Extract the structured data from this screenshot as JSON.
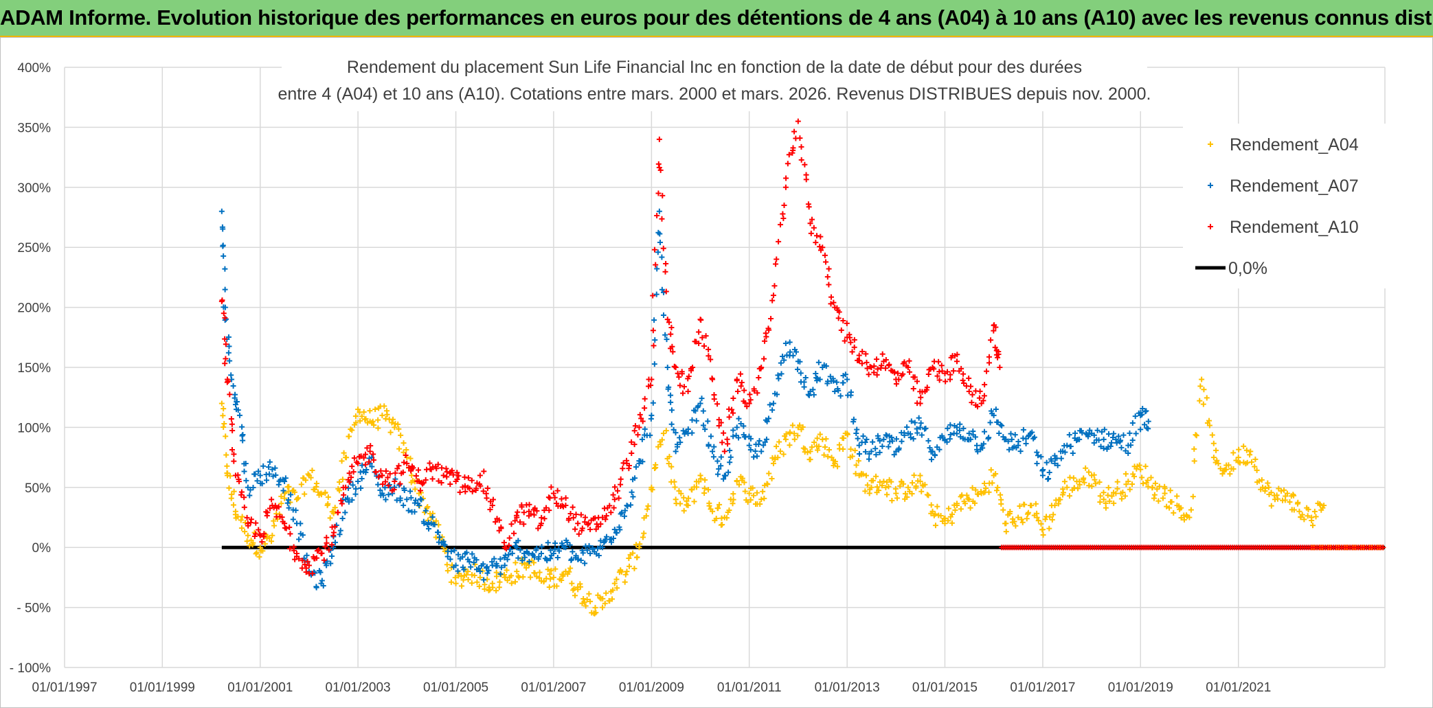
{
  "banner": {
    "title": "ADAM Informe. Evolution historique des performances en euros pour des détentions de 4 ans (A04) à 10 ans (A10) avec les revenus connus distribués"
  },
  "colors": {
    "banner_bg": "#83cf7c",
    "banner_border": "#f0b400",
    "grid": "#d9d9d9",
    "zero_line": "#000000",
    "a04": "#ffc000",
    "a07": "#0070c0",
    "a10": "#ff0000"
  },
  "chart_data": {
    "type": "scatter",
    "title_line1": "Rendement du placement Sun Life Financial Inc en fonction de la date de début pour des durées",
    "title_line2": "entre 4 (A04) et 10 ans (A10). Cotations entre mars. 2000 et mars. 2026. Revenus DISTRIBUES depuis nov. 2000.",
    "xlabel": "",
    "ylabel": "",
    "x_range": [
      "1997-01-01",
      "2023-12-31"
    ],
    "ylim": [
      -100,
      400
    ],
    "y_ticks": [
      -100,
      -50,
      0,
      50,
      100,
      150,
      200,
      250,
      300,
      350,
      400
    ],
    "y_tick_labels": [
      "- 100%",
      "- 50%",
      "0%",
      "50%",
      "100%",
      "150%",
      "200%",
      "250%",
      "300%",
      "350%",
      "400%"
    ],
    "x_ticks": [
      "1997-01-01",
      "1999-01-01",
      "2001-01-01",
      "2003-01-01",
      "2005-01-01",
      "2007-01-01",
      "2009-01-01",
      "2011-01-01",
      "2013-01-01",
      "2015-01-01",
      "2017-01-01",
      "2019-01-01",
      "2021-01-01"
    ],
    "x_tick_labels": [
      "01/01/1997",
      "01/01/1999",
      "01/01/2001",
      "01/01/2003",
      "01/01/2005",
      "01/01/2007",
      "01/01/2009",
      "01/01/2011",
      "01/01/2013",
      "01/01/2015",
      "01/01/2017",
      "01/01/2019",
      "01/01/2021"
    ],
    "grid": true,
    "legend_position": "top-right",
    "marker": "+",
    "series": [
      {
        "name": "Rendement_A04",
        "color": "#ffc000",
        "points": [
          [
            "2000-03-20",
            120
          ],
          [
            "2000-05-01",
            60
          ],
          [
            "2000-07-01",
            30
          ],
          [
            "2000-10-01",
            10
          ],
          [
            "2001-01-01",
            0
          ],
          [
            "2001-04-01",
            10
          ],
          [
            "2001-07-01",
            45
          ],
          [
            "2001-10-01",
            40
          ],
          [
            "2002-01-01",
            60
          ],
          [
            "2002-04-01",
            45
          ],
          [
            "2002-07-01",
            30
          ],
          [
            "2002-10-01",
            75
          ],
          [
            "2003-01-01",
            115
          ],
          [
            "2003-04-01",
            105
          ],
          [
            "2003-07-01",
            110
          ],
          [
            "2003-10-01",
            100
          ],
          [
            "2004-01-01",
            75
          ],
          [
            "2004-04-01",
            45
          ],
          [
            "2004-07-01",
            25
          ],
          [
            "2004-10-01",
            0
          ],
          [
            "2005-01-01",
            -30
          ],
          [
            "2005-04-01",
            -20
          ],
          [
            "2005-07-01",
            -25
          ],
          [
            "2005-10-01",
            -30
          ],
          [
            "2006-01-01",
            -25
          ],
          [
            "2006-04-01",
            -20
          ],
          [
            "2006-07-01",
            -15
          ],
          [
            "2006-10-01",
            -28
          ],
          [
            "2007-01-01",
            -25
          ],
          [
            "2007-04-01",
            -20
          ],
          [
            "2007-07-01",
            -35
          ],
          [
            "2007-10-01",
            -45
          ],
          [
            "2008-01-01",
            -50
          ],
          [
            "2008-04-01",
            -30
          ],
          [
            "2008-07-01",
            -20
          ],
          [
            "2008-10-01",
            0
          ],
          [
            "2009-01-01",
            50
          ],
          [
            "2009-04-01",
            95
          ],
          [
            "2009-07-01",
            40
          ],
          [
            "2009-10-01",
            35
          ],
          [
            "2010-01-01",
            60
          ],
          [
            "2010-04-01",
            30
          ],
          [
            "2010-07-01",
            25
          ],
          [
            "2010-10-01",
            55
          ],
          [
            "2011-01-01",
            45
          ],
          [
            "2011-04-01",
            40
          ],
          [
            "2011-07-01",
            70
          ],
          [
            "2011-10-01",
            90
          ],
          [
            "2012-01-01",
            100
          ],
          [
            "2012-04-01",
            80
          ],
          [
            "2012-07-01",
            90
          ],
          [
            "2012-10-01",
            70
          ],
          [
            "2013-01-01",
            95
          ],
          [
            "2013-04-01",
            60
          ],
          [
            "2013-07-01",
            50
          ],
          [
            "2013-10-01",
            55
          ],
          [
            "2014-01-01",
            45
          ],
          [
            "2014-04-01",
            50
          ],
          [
            "2014-07-01",
            55
          ],
          [
            "2014-10-01",
            30
          ],
          [
            "2015-01-01",
            20
          ],
          [
            "2015-04-01",
            35
          ],
          [
            "2015-07-01",
            40
          ],
          [
            "2015-10-01",
            45
          ],
          [
            "2016-01-01",
            60
          ],
          [
            "2016-04-01",
            20
          ],
          [
            "2016-07-01",
            25
          ],
          [
            "2016-10-01",
            35
          ],
          [
            "2017-01-01",
            15
          ],
          [
            "2017-04-01",
            35
          ],
          [
            "2017-07-01",
            50
          ],
          [
            "2017-10-01",
            55
          ],
          [
            "2018-01-01",
            60
          ],
          [
            "2018-04-01",
            40
          ],
          [
            "2018-07-01",
            45
          ],
          [
            "2018-10-01",
            55
          ],
          [
            "2019-01-01",
            65
          ],
          [
            "2019-04-01",
            50
          ],
          [
            "2019-07-01",
            45
          ],
          [
            "2019-10-01",
            35
          ],
          [
            "2020-01-01",
            25
          ],
          [
            "2020-04-01",
            140
          ],
          [
            "2020-07-01",
            75
          ],
          [
            "2020-10-01",
            65
          ],
          [
            "2021-01-01",
            75
          ],
          [
            "2021-04-01",
            80
          ],
          [
            "2021-07-01",
            50
          ],
          [
            "2021-10-01",
            40
          ],
          [
            "2022-01-01",
            45
          ],
          [
            "2022-04-01",
            30
          ],
          [
            "2022-07-01",
            25
          ],
          [
            "2022-10-01",
            35
          ]
        ]
      },
      {
        "name": "Rendement_A07",
        "color": "#0070c0",
        "points": [
          [
            "2000-03-20",
            280
          ],
          [
            "2000-04-15",
            200
          ],
          [
            "2000-06-01",
            140
          ],
          [
            "2000-08-01",
            110
          ],
          [
            "2000-10-01",
            50
          ],
          [
            "2001-01-01",
            60
          ],
          [
            "2001-04-01",
            65
          ],
          [
            "2001-07-01",
            55
          ],
          [
            "2001-10-01",
            20
          ],
          [
            "2002-01-01",
            -20
          ],
          [
            "2002-04-01",
            -30
          ],
          [
            "2002-07-01",
            0
          ],
          [
            "2002-10-01",
            40
          ],
          [
            "2003-01-01",
            55
          ],
          [
            "2003-04-01",
            70
          ],
          [
            "2003-07-01",
            45
          ],
          [
            "2003-10-01",
            50
          ],
          [
            "2004-01-01",
            40
          ],
          [
            "2004-04-01",
            35
          ],
          [
            "2004-07-01",
            20
          ],
          [
            "2004-10-01",
            5
          ],
          [
            "2005-01-01",
            -15
          ],
          [
            "2005-04-01",
            -10
          ],
          [
            "2005-07-01",
            -20
          ],
          [
            "2005-10-01",
            -15
          ],
          [
            "2006-01-01",
            -15
          ],
          [
            "2006-04-01",
            0
          ],
          [
            "2006-07-01",
            -5
          ],
          [
            "2006-10-01",
            -5
          ],
          [
            "2007-01-01",
            -5
          ],
          [
            "2007-04-01",
            0
          ],
          [
            "2007-07-01",
            -10
          ],
          [
            "2007-10-01",
            -5
          ],
          [
            "2008-01-01",
            0
          ],
          [
            "2008-04-01",
            15
          ],
          [
            "2008-07-01",
            35
          ],
          [
            "2008-10-01",
            70
          ],
          [
            "2009-01-01",
            110
          ],
          [
            "2009-03-01",
            280
          ],
          [
            "2009-05-01",
            150
          ],
          [
            "2009-07-01",
            80
          ],
          [
            "2009-10-01",
            95
          ],
          [
            "2010-01-01",
            120
          ],
          [
            "2010-04-01",
            80
          ],
          [
            "2010-07-01",
            60
          ],
          [
            "2010-10-01",
            100
          ],
          [
            "2011-01-01",
            85
          ],
          [
            "2011-04-01",
            80
          ],
          [
            "2011-07-01",
            120
          ],
          [
            "2011-10-01",
            170
          ],
          [
            "2012-01-01",
            155
          ],
          [
            "2012-04-01",
            130
          ],
          [
            "2012-07-01",
            150
          ],
          [
            "2012-10-01",
            130
          ],
          [
            "2013-01-01",
            140
          ],
          [
            "2013-04-01",
            85
          ],
          [
            "2013-07-01",
            80
          ],
          [
            "2013-10-01",
            90
          ],
          [
            "2014-01-01",
            80
          ],
          [
            "2014-04-01",
            95
          ],
          [
            "2014-07-01",
            100
          ],
          [
            "2014-10-01",
            80
          ],
          [
            "2015-01-01",
            90
          ],
          [
            "2015-04-01",
            100
          ],
          [
            "2015-07-01",
            95
          ],
          [
            "2015-10-01",
            85
          ],
          [
            "2016-01-01",
            110
          ],
          [
            "2016-04-01",
            90
          ],
          [
            "2016-07-01",
            85
          ],
          [
            "2016-10-01",
            95
          ],
          [
            "2017-01-01",
            60
          ],
          [
            "2017-04-01",
            70
          ],
          [
            "2017-07-01",
            85
          ],
          [
            "2017-10-01",
            90
          ],
          [
            "2018-01-01",
            95
          ],
          [
            "2018-04-01",
            90
          ],
          [
            "2018-07-01",
            90
          ],
          [
            "2018-10-01",
            85
          ],
          [
            "2019-01-01",
            110
          ],
          [
            "2019-03-01",
            105
          ]
        ]
      },
      {
        "name": "Rendement_A10",
        "color": "#ff0000",
        "points": [
          [
            "2000-03-20",
            205
          ],
          [
            "2000-05-01",
            140
          ],
          [
            "2000-07-01",
            60
          ],
          [
            "2000-10-01",
            20
          ],
          [
            "2001-01-01",
            10
          ],
          [
            "2001-04-01",
            35
          ],
          [
            "2001-07-01",
            20
          ],
          [
            "2001-10-01",
            -5
          ],
          [
            "2002-01-01",
            -15
          ],
          [
            "2002-04-01",
            -5
          ],
          [
            "2002-07-01",
            10
          ],
          [
            "2002-10-01",
            50
          ],
          [
            "2003-01-01",
            70
          ],
          [
            "2003-04-01",
            80
          ],
          [
            "2003-07-01",
            60
          ],
          [
            "2003-10-01",
            55
          ],
          [
            "2004-01-01",
            70
          ],
          [
            "2004-04-01",
            55
          ],
          [
            "2004-07-01",
            65
          ],
          [
            "2004-10-01",
            60
          ],
          [
            "2005-01-01",
            55
          ],
          [
            "2005-04-01",
            50
          ],
          [
            "2005-07-01",
            60
          ],
          [
            "2005-10-01",
            35
          ],
          [
            "2006-01-01",
            0
          ],
          [
            "2006-04-01",
            25
          ],
          [
            "2006-07-01",
            30
          ],
          [
            "2006-10-01",
            20
          ],
          [
            "2007-01-01",
            45
          ],
          [
            "2007-04-01",
            35
          ],
          [
            "2007-07-01",
            20
          ],
          [
            "2007-10-01",
            15
          ],
          [
            "2008-01-01",
            25
          ],
          [
            "2008-04-01",
            40
          ],
          [
            "2008-07-01",
            70
          ],
          [
            "2008-10-01",
            100
          ],
          [
            "2009-01-01",
            140
          ],
          [
            "2009-03-01",
            340
          ],
          [
            "2009-05-01",
            190
          ],
          [
            "2009-07-01",
            150
          ],
          [
            "2009-10-01",
            130
          ],
          [
            "2010-01-01",
            190
          ],
          [
            "2010-04-01",
            140
          ],
          [
            "2010-07-01",
            80
          ],
          [
            "2010-10-01",
            140
          ],
          [
            "2011-01-01",
            120
          ],
          [
            "2011-04-01",
            150
          ],
          [
            "2011-07-01",
            210
          ],
          [
            "2011-10-01",
            300
          ],
          [
            "2012-01-01",
            355
          ],
          [
            "2012-04-01",
            270
          ],
          [
            "2012-07-01",
            250
          ],
          [
            "2012-10-01",
            200
          ],
          [
            "2013-01-01",
            175
          ],
          [
            "2013-04-01",
            160
          ],
          [
            "2013-07-01",
            150
          ],
          [
            "2013-10-01",
            155
          ],
          [
            "2014-01-01",
            140
          ],
          [
            "2014-04-01",
            150
          ],
          [
            "2014-07-01",
            120
          ],
          [
            "2014-10-01",
            150
          ],
          [
            "2015-01-01",
            145
          ],
          [
            "2015-04-01",
            155
          ],
          [
            "2015-07-01",
            130
          ],
          [
            "2015-10-01",
            120
          ],
          [
            "2016-01-01",
            185
          ],
          [
            "2016-02-15",
            150
          ]
        ]
      },
      {
        "name": "0,0%",
        "color": "#000000",
        "points": [
          [
            "2000-03-20",
            0
          ],
          [
            "2023-12-31",
            0
          ]
        ]
      }
    ],
    "a10_zero_dots_range": [
      "2016-03-01",
      "2023-12-31"
    ],
    "a04_zero_dots_range": [
      "2022-07-01",
      "2023-12-31"
    ],
    "legend": [
      {
        "label": "Rendement_A04",
        "color": "#ffc000",
        "marker": "+"
      },
      {
        "label": "Rendement_A07",
        "color": "#0070c0",
        "marker": "+"
      },
      {
        "label": "Rendement_A10",
        "color": "#ff0000",
        "marker": "+"
      },
      {
        "label": "0,0%",
        "color": "#000000",
        "marker": "line"
      }
    ]
  }
}
